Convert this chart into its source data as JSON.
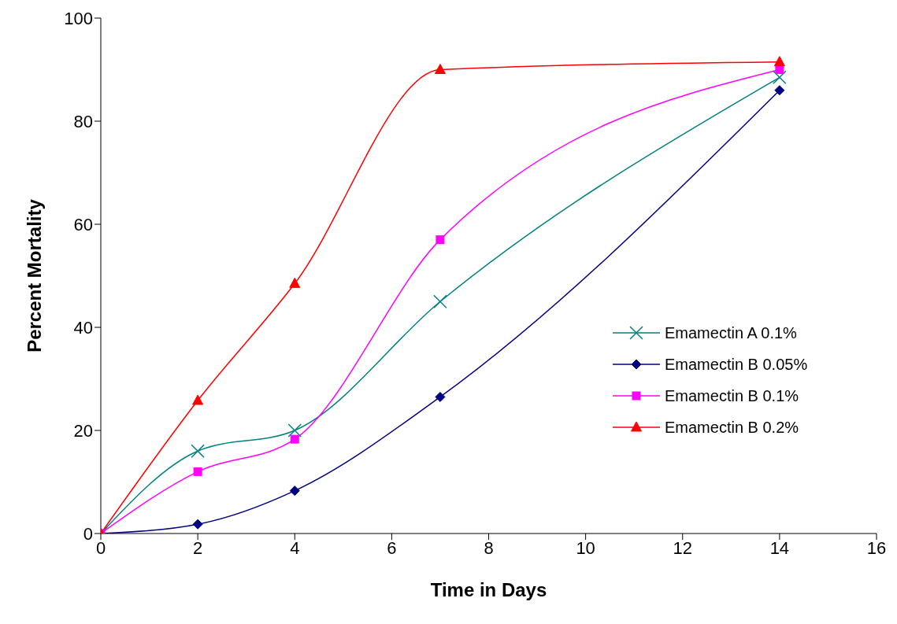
{
  "chart_data": {
    "type": "line",
    "xlabel": "Time in Days",
    "ylabel": "Percent Mortality",
    "xlim": [
      0,
      16
    ],
    "xticks": [
      0,
      2,
      4,
      6,
      8,
      10,
      12,
      14,
      16
    ],
    "ylim": [
      0,
      100
    ],
    "yticks": [
      0,
      20,
      40,
      60,
      80,
      100
    ],
    "grid": false,
    "legend": "right",
    "line_style": "solid",
    "x": [
      0,
      2,
      4,
      7,
      14
    ],
    "series": [
      {
        "name": "Emamectin A 0.1%",
        "color": "#008080",
        "marker": "cross",
        "values": [
          0,
          16,
          20,
          45,
          88.5
        ]
      },
      {
        "name": "Emamectin B 0.05%",
        "color": "#000080",
        "marker": "diamond",
        "values": [
          0,
          1.8,
          8.3,
          26.5,
          86
        ]
      },
      {
        "name": "Emamectin B 0.1%",
        "color": "#ff00ff",
        "marker": "square",
        "values": [
          0,
          12,
          18.3,
          57,
          90
        ]
      },
      {
        "name": "Emamectin B 0.2%",
        "color": "#ff0000",
        "marker": "triangle",
        "values": [
          0,
          25.8,
          48.5,
          90,
          91.5
        ]
      }
    ]
  }
}
